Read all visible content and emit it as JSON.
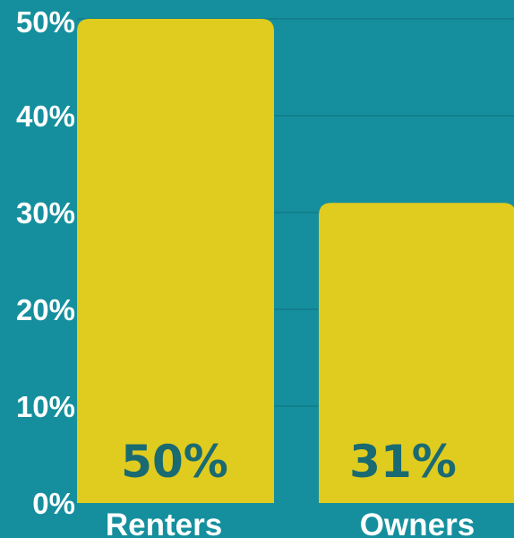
{
  "chart_data": {
    "type": "bar",
    "categories": [
      "Renters",
      "Owners"
    ],
    "values": [
      50,
      31
    ],
    "data_labels": [
      "50%",
      "31%"
    ],
    "ylim": [
      0,
      50
    ],
    "yticks": [
      0,
      10,
      20,
      30,
      40,
      50
    ],
    "ytick_labels": [
      "0%",
      "10%",
      "20%",
      "30%",
      "40%",
      "50%"
    ],
    "grid": true,
    "colors": {
      "background": "#158f9d",
      "bar": "#e0cb1f",
      "grid": "#127c89",
      "data_label": "#1a6a72",
      "axis_text": "#ffffff"
    }
  }
}
